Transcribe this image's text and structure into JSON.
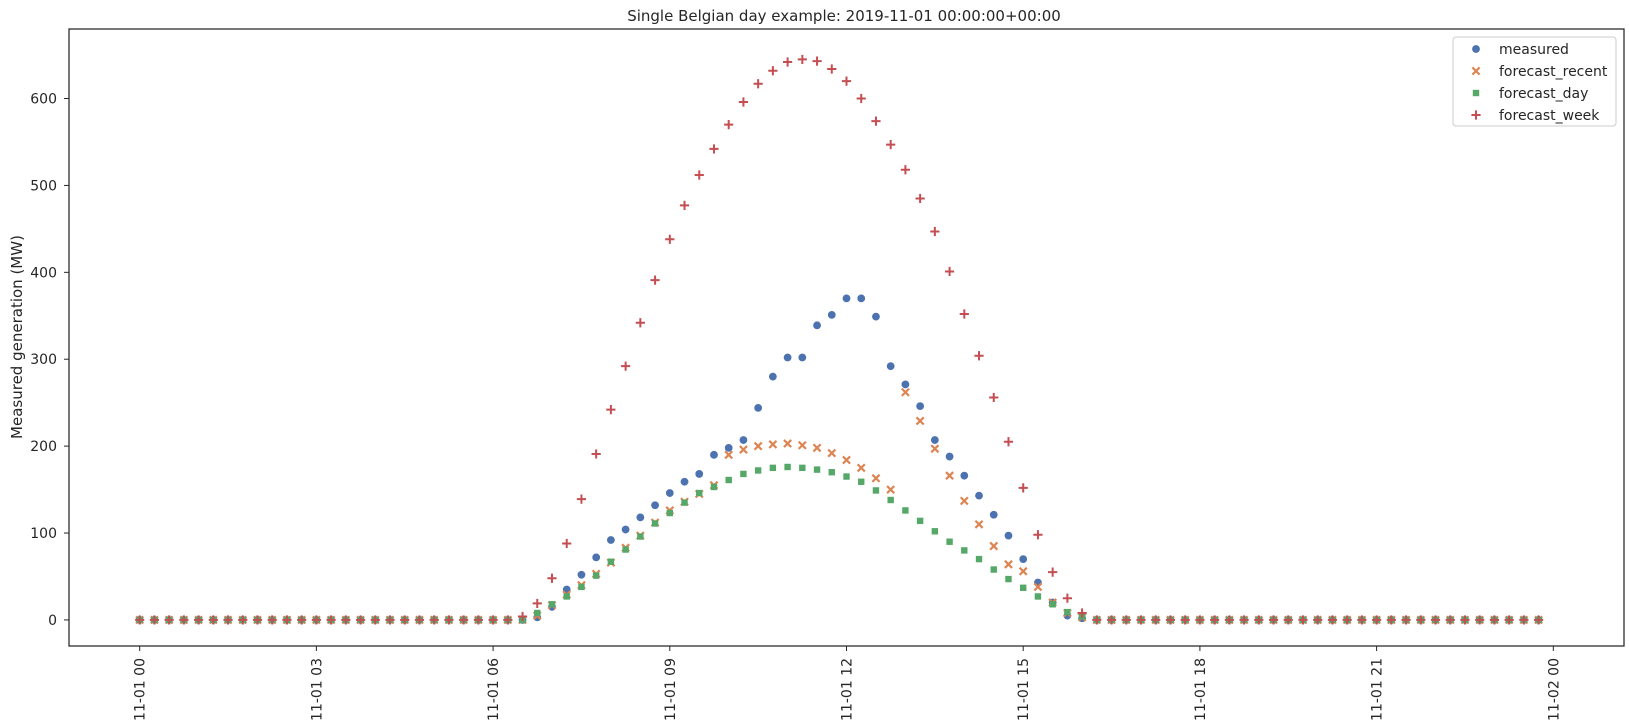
{
  "chart_data": {
    "type": "scatter",
    "title": "Single Belgian day example: 2019-11-01 00:00:00+00:00",
    "xlabel": "",
    "ylabel": "Measured generation (MW)",
    "xlim": [
      "2019-10-31 22:48",
      "2019-11-02 01:12"
    ],
    "ylim": [
      -30,
      680
    ],
    "grid": false,
    "legend_position": "top-right",
    "x_ticks": [
      "11-01 00",
      "11-01 03",
      "11-01 06",
      "11-01 09",
      "11-01 12",
      "11-01 15",
      "11-01 18",
      "11-01 21",
      "11-02 00"
    ],
    "y_ticks": [
      0,
      100,
      200,
      300,
      400,
      500,
      600
    ],
    "x": [
      "00:00",
      "00:15",
      "00:30",
      "00:45",
      "01:00",
      "01:15",
      "01:30",
      "01:45",
      "02:00",
      "02:15",
      "02:30",
      "02:45",
      "03:00",
      "03:15",
      "03:30",
      "03:45",
      "04:00",
      "04:15",
      "04:30",
      "04:45",
      "05:00",
      "05:15",
      "05:30",
      "05:45",
      "06:00",
      "06:15",
      "06:30",
      "06:45",
      "07:00",
      "07:15",
      "07:30",
      "07:45",
      "08:00",
      "08:15",
      "08:30",
      "08:45",
      "09:00",
      "09:15",
      "09:30",
      "09:45",
      "10:00",
      "10:15",
      "10:30",
      "10:45",
      "11:00",
      "11:15",
      "11:30",
      "11:45",
      "12:00",
      "12:15",
      "12:30",
      "12:45",
      "13:00",
      "13:15",
      "13:30",
      "13:45",
      "14:00",
      "14:15",
      "14:30",
      "14:45",
      "15:00",
      "15:15",
      "15:30",
      "15:45",
      "16:00",
      "16:15",
      "16:30",
      "16:45",
      "17:00",
      "17:15",
      "17:30",
      "17:45",
      "18:00",
      "18:15",
      "18:30",
      "18:45",
      "19:00",
      "19:15",
      "19:30",
      "19:45",
      "20:00",
      "20:15",
      "20:30",
      "20:45",
      "21:00",
      "21:15",
      "21:30",
      "21:45",
      "22:00",
      "22:15",
      "22:30",
      "22:45",
      "23:00",
      "23:15",
      "23:30",
      "23:45"
    ],
    "series": [
      {
        "name": "measured",
        "marker": "circle",
        "color": "#4c72b0",
        "values": [
          0,
          0,
          0,
          0,
          0,
          0,
          0,
          0,
          0,
          0,
          0,
          0,
          0,
          0,
          0,
          0,
          0,
          0,
          0,
          0,
          0,
          0,
          0,
          0,
          0,
          0,
          0,
          3,
          15,
          35,
          52,
          72,
          92,
          104,
          118,
          132,
          146,
          159,
          168,
          190,
          198,
          207,
          244,
          280,
          302,
          302,
          339,
          351,
          370,
          370,
          349,
          292,
          271,
          246,
          207,
          188,
          166,
          143,
          121,
          97,
          70,
          43,
          20,
          5,
          2,
          0,
          0,
          0,
          0,
          0,
          0,
          0,
          0,
          0,
          0,
          0,
          0,
          0,
          0,
          0,
          0,
          0,
          0,
          0,
          0,
          0,
          0,
          0,
          0,
          0,
          0,
          0,
          0,
          0,
          0,
          0
        ]
      },
      {
        "name": "forecast_recent",
        "marker": "x",
        "color": "#dd8452",
        "values": [
          0,
          0,
          0,
          0,
          0,
          0,
          0,
          0,
          0,
          0,
          0,
          0,
          0,
          0,
          0,
          0,
          0,
          0,
          0,
          0,
          0,
          0,
          0,
          0,
          0,
          0,
          0,
          5,
          17,
          29,
          40,
          53,
          66,
          83,
          97,
          112,
          126,
          136,
          145,
          155,
          190,
          196,
          200,
          202,
          203,
          201,
          198,
          192,
          184,
          175,
          163,
          150,
          262,
          229,
          197,
          166,
          137,
          110,
          85,
          64,
          56,
          38,
          20,
          8,
          3,
          0,
          0,
          0,
          0,
          0,
          0,
          0,
          0,
          0,
          0,
          0,
          0,
          0,
          0,
          0,
          0,
          0,
          0,
          0,
          0,
          0,
          0,
          0,
          0,
          0,
          0,
          0,
          0,
          0,
          0,
          0
        ]
      },
      {
        "name": "forecast_day",
        "marker": "square",
        "color": "#55a868",
        "values": [
          0,
          0,
          0,
          0,
          0,
          0,
          0,
          0,
          0,
          0,
          0,
          0,
          0,
          0,
          0,
          0,
          0,
          0,
          0,
          0,
          0,
          0,
          0,
          0,
          0,
          0,
          0,
          8,
          18,
          27,
          38,
          51,
          67,
          81,
          96,
          111,
          123,
          135,
          146,
          153,
          161,
          168,
          172,
          175,
          176,
          175,
          173,
          170,
          165,
          159,
          149,
          138,
          126,
          114,
          102,
          90,
          80,
          70,
          58,
          47,
          37,
          27,
          18,
          9,
          4,
          0,
          0,
          0,
          0,
          0,
          0,
          0,
          0,
          0,
          0,
          0,
          0,
          0,
          0,
          0,
          0,
          0,
          0,
          0,
          0,
          0,
          0,
          0,
          0,
          0,
          0,
          0,
          0,
          0,
          0,
          0
        ]
      },
      {
        "name": "forecast_week",
        "marker": "plus",
        "color": "#c44e52",
        "values": [
          0,
          0,
          0,
          0,
          0,
          0,
          0,
          0,
          0,
          0,
          0,
          0,
          0,
          0,
          0,
          0,
          0,
          0,
          0,
          0,
          0,
          0,
          0,
          0,
          0,
          0,
          4,
          19,
          48,
          88,
          139,
          191,
          242,
          292,
          342,
          391,
          438,
          477,
          512,
          542,
          570,
          596,
          617,
          632,
          642,
          645,
          643,
          634,
          620,
          600,
          574,
          547,
          518,
          485,
          447,
          401,
          352,
          304,
          256,
          205,
          152,
          98,
          55,
          25,
          8,
          0,
          0,
          0,
          0,
          0,
          0,
          0,
          0,
          0,
          0,
          0,
          0,
          0,
          0,
          0,
          0,
          0,
          0,
          0,
          0,
          0,
          0,
          0,
          0,
          0,
          0,
          0,
          0,
          0,
          0,
          0
        ]
      }
    ]
  }
}
